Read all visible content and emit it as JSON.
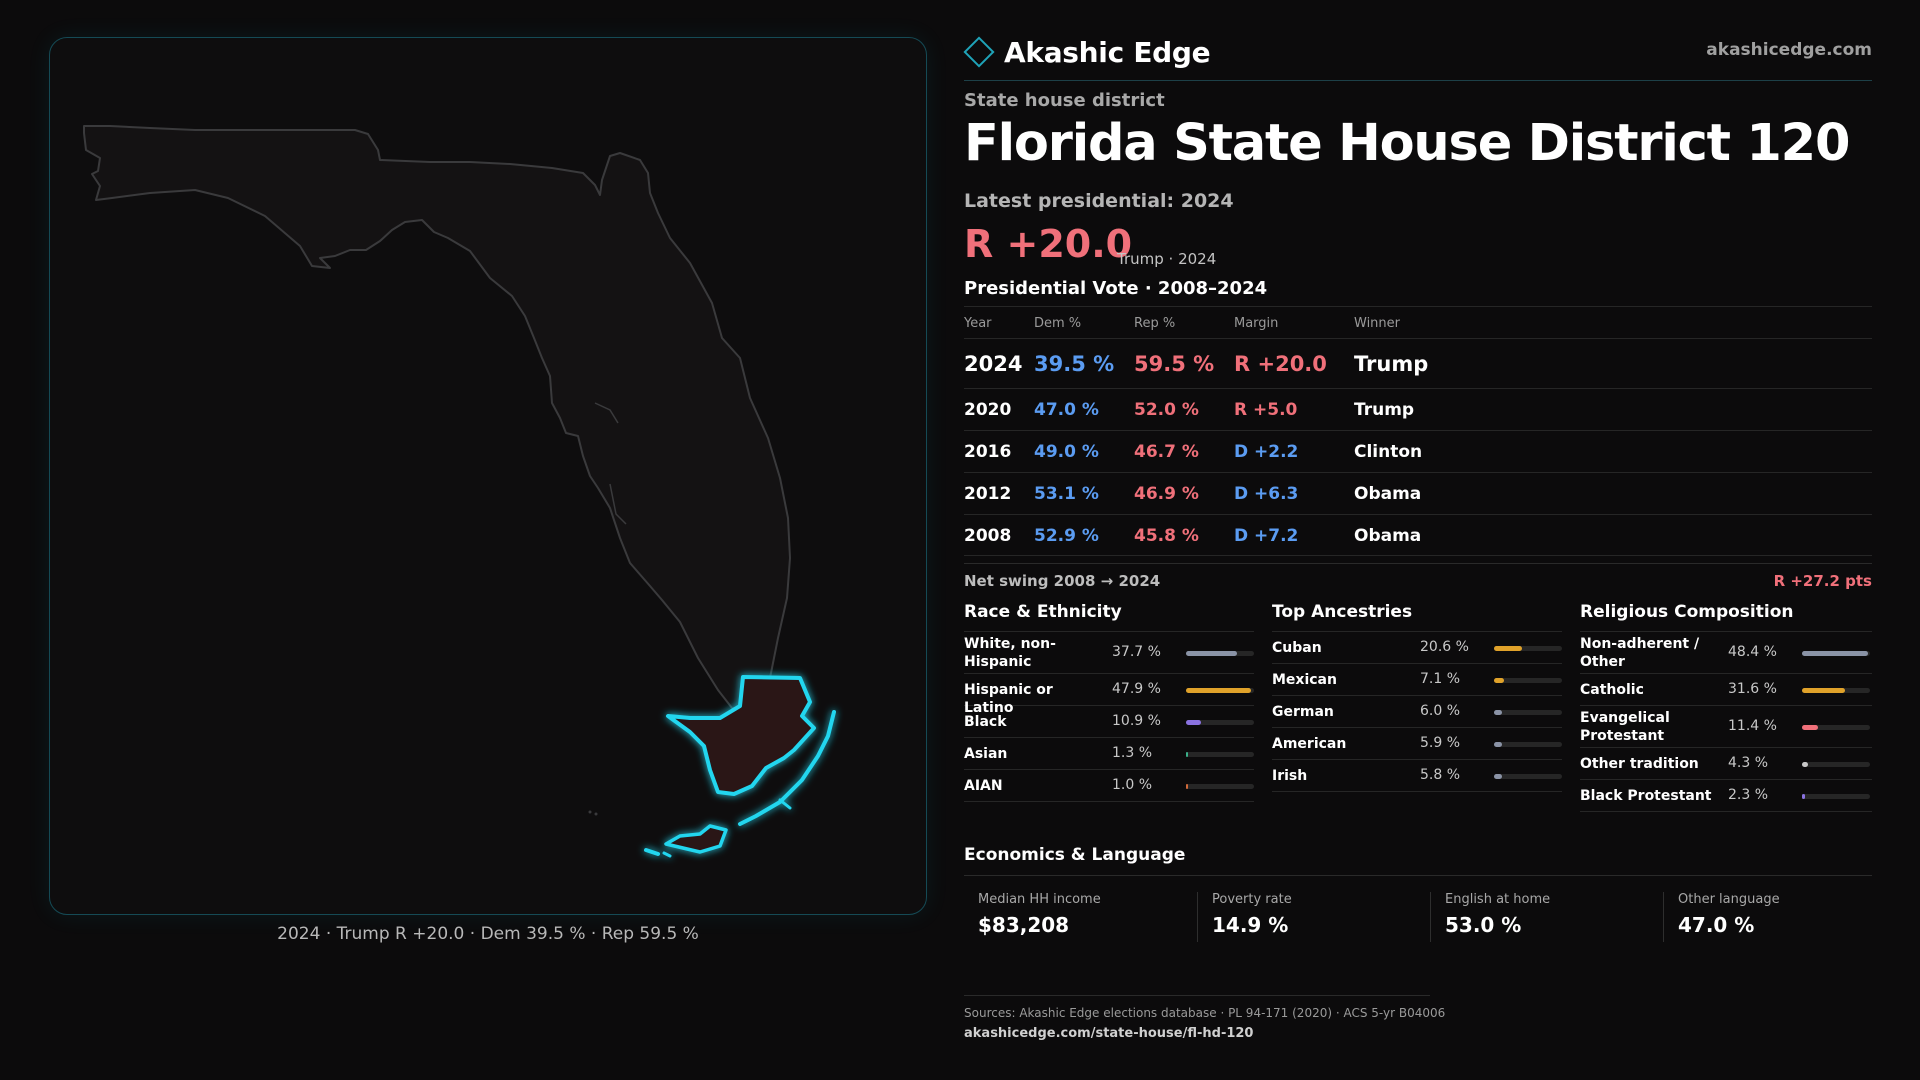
{
  "brand": {
    "name": "Akashic Edge",
    "url": "akashicedge.com"
  },
  "district": {
    "kicker": "State house district",
    "title": "Florida State House District 120",
    "latest_label": "Latest presidential: 2024",
    "margin": "R +20.0",
    "margin_sub": "Trump · 2024"
  },
  "map": {
    "caption": "2024 · Trump R +20.0 · Dem 39.5 % · Rep 59.5 %"
  },
  "presidential": {
    "title": "Presidential Vote · 2008–2024",
    "headers": {
      "year": "Year",
      "dem": "Dem %",
      "rep": "Rep %",
      "margin": "Margin",
      "winner": "Winner"
    },
    "rows": [
      {
        "year": "2024",
        "dem": "39.5 %",
        "rep": "59.5 %",
        "margin": "R +20.0",
        "winner": "Trump"
      },
      {
        "year": "2020",
        "dem": "47.0 %",
        "rep": "52.0 %",
        "margin": "R +5.0",
        "winner": "Trump"
      },
      {
        "year": "2016",
        "dem": "49.0 %",
        "rep": "46.7 %",
        "margin": "D +2.2",
        "winner": "Clinton"
      },
      {
        "year": "2012",
        "dem": "53.1 %",
        "rep": "46.9 %",
        "margin": "D +6.3",
        "winner": "Obama"
      },
      {
        "year": "2008",
        "dem": "52.9 %",
        "rep": "45.8 %",
        "margin": "D +7.2",
        "winner": "Obama"
      }
    ],
    "swing_label": "Net swing 2008 → 2024",
    "swing_value": "R +27.2 pts"
  },
  "race": {
    "title": "Race & Ethnicity",
    "rows": [
      {
        "label": "White, non-Hispanic",
        "value": "37.7 %",
        "fraction": 0.377,
        "color": "#8a93a6"
      },
      {
        "label": "Hispanic or Latino",
        "value": "47.9 %",
        "fraction": 0.479,
        "color": "#e0a22a"
      },
      {
        "label": "Black",
        "value": "10.9 %",
        "fraction": 0.109,
        "color": "#8a72e0"
      },
      {
        "label": "Asian",
        "value": "1.3 %",
        "fraction": 0.013,
        "color": "#3bb08a"
      },
      {
        "label": "AIAN",
        "value": "1.0 %",
        "fraction": 0.01,
        "color": "#d26a3a"
      }
    ]
  },
  "ancestry": {
    "title": "Top Ancestries",
    "rows": [
      {
        "label": "Cuban",
        "value": "20.6 %",
        "fraction": 0.206,
        "color": "#e0a22a"
      },
      {
        "label": "Mexican",
        "value": "7.1 %",
        "fraction": 0.071,
        "color": "#e0a22a"
      },
      {
        "label": "German",
        "value": "6.0 %",
        "fraction": 0.06,
        "color": "#8a93a6"
      },
      {
        "label": "American",
        "value": "5.9 %",
        "fraction": 0.059,
        "color": "#8a93a6"
      },
      {
        "label": "Irish",
        "value": "5.8 %",
        "fraction": 0.058,
        "color": "#8a93a6"
      }
    ]
  },
  "religion": {
    "title": "Religious Composition",
    "rows": [
      {
        "label": "Non-adherent / Other",
        "value": "48.4 %",
        "fraction": 0.484,
        "color": "#8a93a6"
      },
      {
        "label": "Catholic",
        "value": "31.6 %",
        "fraction": 0.316,
        "color": "#e0a22a"
      },
      {
        "label": "Evangelical Protestant",
        "value": "11.4 %",
        "fraction": 0.114,
        "color": "#f0707a"
      },
      {
        "label": "Other tradition",
        "value": "4.3 %",
        "fraction": 0.043,
        "color": "#c8c8c8"
      },
      {
        "label": "Black Protestant",
        "value": "2.3 %",
        "fraction": 0.023,
        "color": "#8a72e0"
      }
    ]
  },
  "economics": {
    "title": "Economics & Language",
    "items": [
      {
        "label": "Median HH income",
        "value": "$83,208"
      },
      {
        "label": "Poverty rate",
        "value": "14.9 %"
      },
      {
        "label": "English at home",
        "value": "53.0 %"
      },
      {
        "label": "Other language",
        "value": "47.0 %"
      }
    ]
  },
  "sources": {
    "text": "Sources: Akashic Edge elections database · PL 94-171 (2020) · ACS 5-yr B04006",
    "url": "akashicedge.com/state-house/fl-hd-120"
  },
  "colors": {
    "accent": "#1fd8f0",
    "rep": "#f0707a",
    "dem": "#5b9cf2"
  }
}
